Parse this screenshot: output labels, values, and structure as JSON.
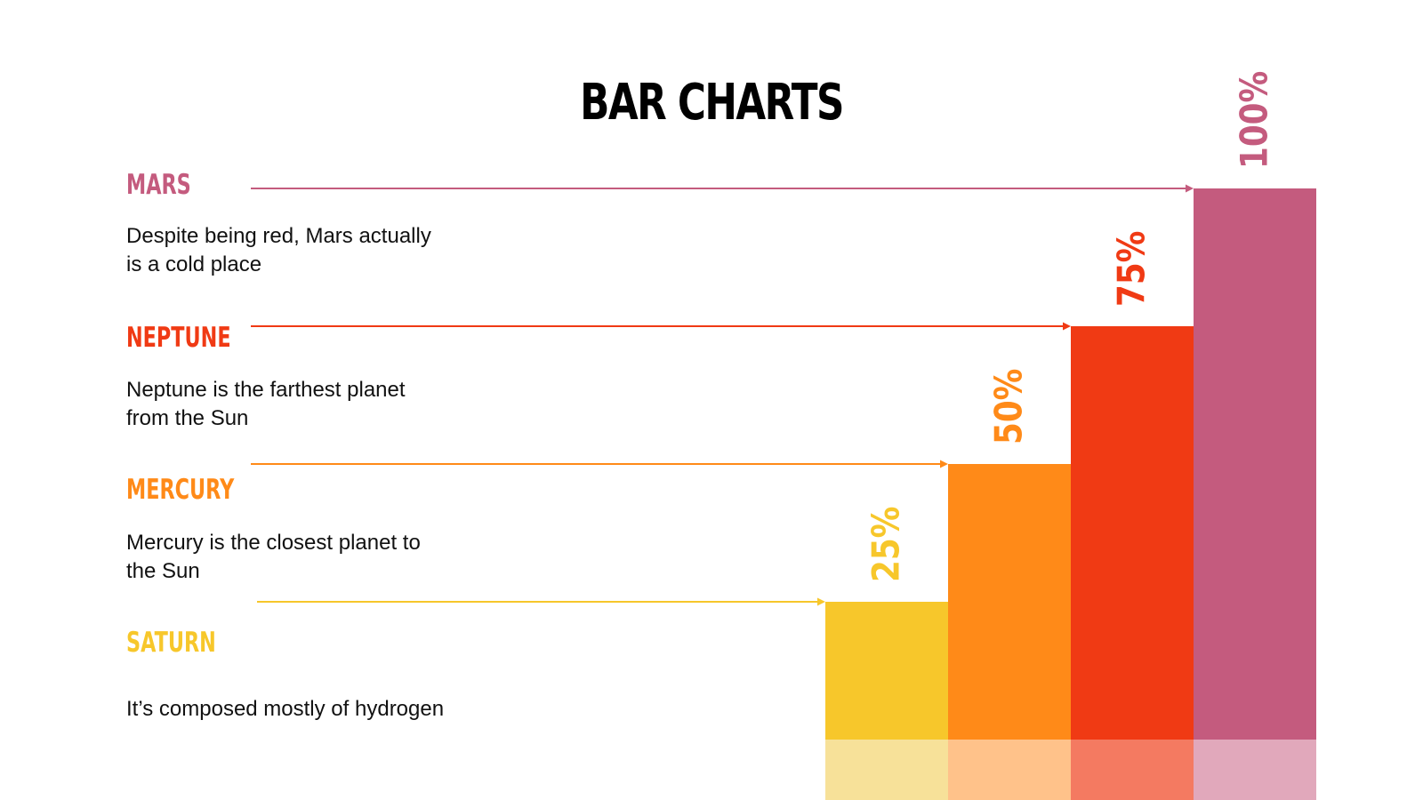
{
  "title": "BAR CHARTS",
  "items": [
    {
      "name": "MARS",
      "description_line1": "Despite being red, Mars actually",
      "description_line2": "is a cold place",
      "color": "#c45b7e"
    },
    {
      "name": "NEPTUNE",
      "description_line1": "Neptune is the farthest planet",
      "description_line2": "from the Sun",
      "color": "#f03a14"
    },
    {
      "name": "MERCURY",
      "description_line1": "Mercury is the closest planet to",
      "description_line2": "the Sun",
      "color": "#ff8a18"
    },
    {
      "name": "SATURN",
      "description_line1": "It’s composed mostly of hydrogen",
      "description_line2": "",
      "color": "#f7c72b"
    }
  ],
  "chart_data": {
    "type": "bar",
    "title": "BAR CHARTS",
    "categories": [
      "SATURN",
      "MERCURY",
      "NEPTUNE",
      "MARS"
    ],
    "values": [
      25,
      50,
      75,
      100
    ],
    "value_labels": [
      "25%",
      "50%",
      "75%",
      "100%"
    ],
    "colors": [
      "#f7c72b",
      "#ff8a18",
      "#f03a14",
      "#c45b7e"
    ],
    "base_colors": [
      "#f7e199",
      "#ffc28a",
      "#f47a61",
      "#e1a8bb"
    ],
    "ylim": [
      0,
      100
    ],
    "xlabel": "",
    "ylabel": ""
  }
}
